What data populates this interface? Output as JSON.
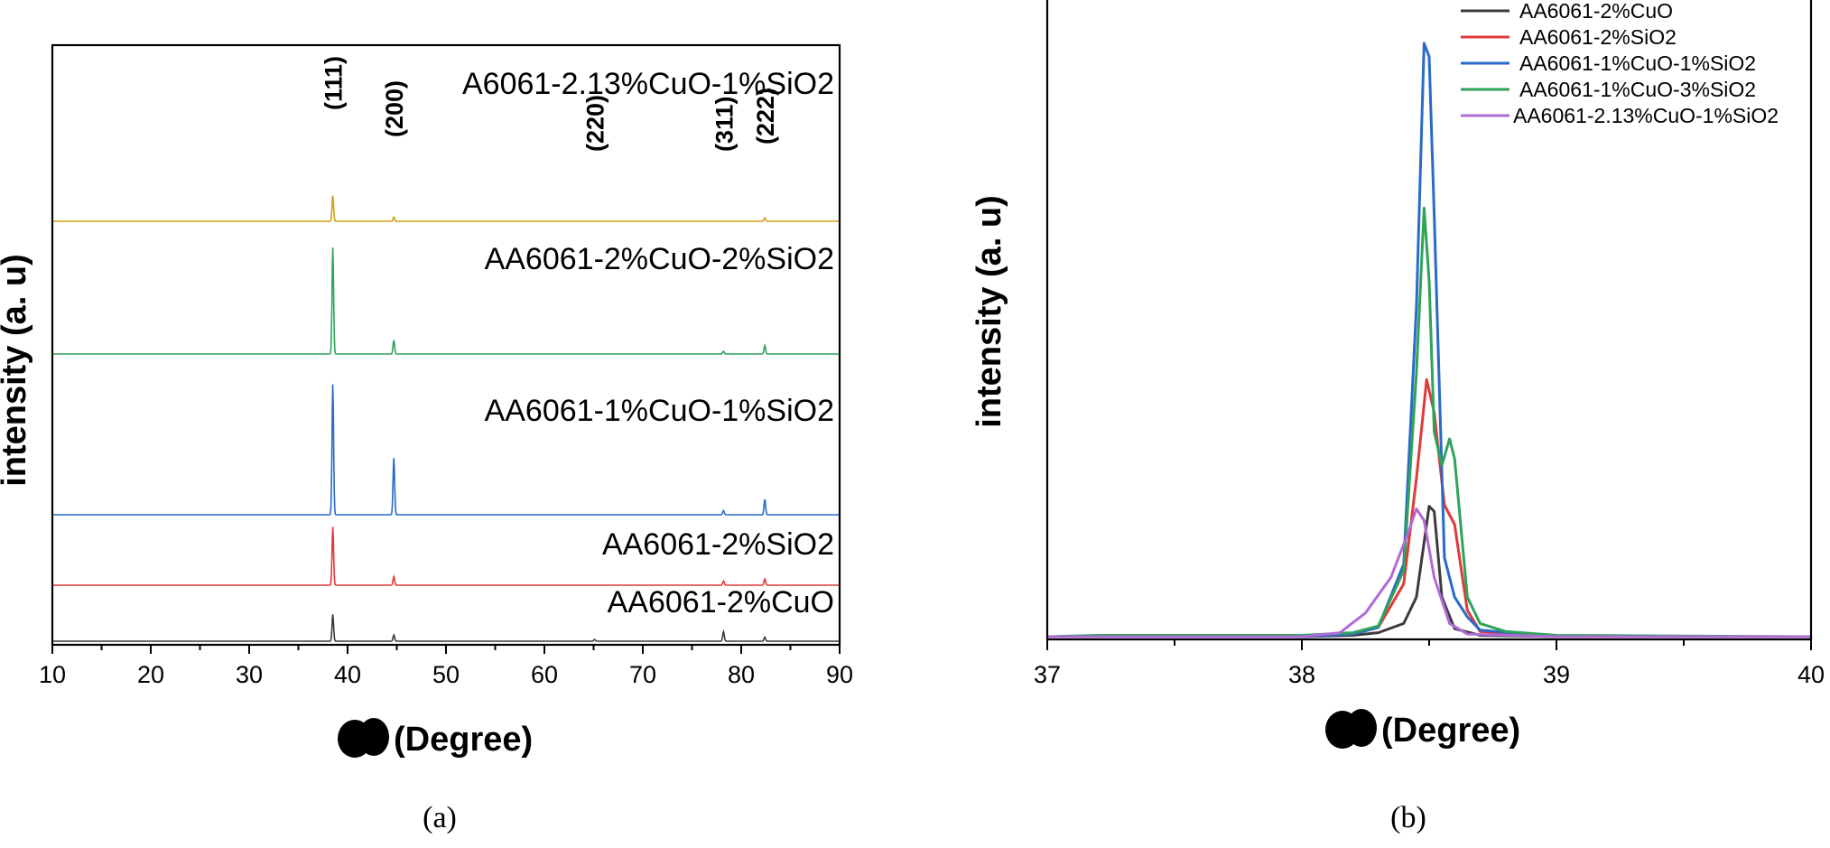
{
  "chart_data": [
    {
      "type": "line",
      "caption": "(a)",
      "ylabel": "intensity (a. u)",
      "xlabel": "(Degree)",
      "xlim": [
        10,
        90
      ],
      "xticks": [
        10,
        20,
        30,
        40,
        50,
        60,
        70,
        80,
        90
      ],
      "tick_labels": [
        "10",
        "20",
        "30",
        "40",
        "50",
        "60",
        "70",
        "80",
        "90"
      ],
      "peak_annotations": [
        {
          "label": "(111)",
          "x": 38.5
        },
        {
          "label": "(200)",
          "x": 44.7
        },
        {
          "label": "(220)",
          "x": 65.1
        },
        {
          "label": "(311)",
          "x": 78.2
        },
        {
          "label": "(222)",
          "x": 82.4
        }
      ],
      "series": [
        {
          "name": "AA6061-2%CuO",
          "color": "#3c3c3c",
          "peaks": [
            {
              "x": 38.5,
              "height": 0.78
            },
            {
              "x": 44.7,
              "height": 0.18
            },
            {
              "x": 65.1,
              "height": 0.05
            },
            {
              "x": 78.2,
              "height": 0.28
            },
            {
              "x": 82.4,
              "height": 0.12
            }
          ]
        },
        {
          "name": "AA6061-2%SiO2",
          "color": "#e0393a",
          "peaks": [
            {
              "x": 38.5,
              "height": 1.7
            },
            {
              "x": 44.7,
              "height": 0.25
            },
            {
              "x": 78.2,
              "height": 0.12
            },
            {
              "x": 82.4,
              "height": 0.18
            }
          ]
        },
        {
          "name": "AA6061-1%CuO-1%SiO2",
          "color": "#2a6ac8",
          "peaks": [
            {
              "x": 38.5,
              "height": 3.8
            },
            {
              "x": 44.7,
              "height": 1.65
            },
            {
              "x": 78.2,
              "height": 0.12
            },
            {
              "x": 82.4,
              "height": 0.45
            }
          ]
        },
        {
          "name": "AA6061-2%CuO-2%SiO2",
          "color": "#2fa35a",
          "peaks": [
            {
              "x": 38.5,
              "height": 3.1
            },
            {
              "x": 44.7,
              "height": 0.4
            },
            {
              "x": 78.2,
              "height": 0.08
            },
            {
              "x": 82.4,
              "height": 0.25
            }
          ]
        },
        {
          "name": "A6061-2.13%CuO-1%SiO2",
          "color": "#d4a017",
          "peaks": [
            {
              "x": 38.5,
              "height": 0.75
            },
            {
              "x": 44.7,
              "height": 0.12
            },
            {
              "x": 82.4,
              "height": 0.1
            }
          ]
        }
      ]
    },
    {
      "type": "line",
      "caption": "(b)",
      "ylabel": "intensity (a. u)",
      "xlabel": "(Degree)",
      "xlim": [
        37,
        40
      ],
      "xticks": [
        37,
        38,
        39,
        40
      ],
      "tick_labels": [
        "37",
        "38",
        "39",
        "40"
      ],
      "legend_position": "top-right",
      "series": [
        {
          "name": "AA6061-2%CuO",
          "color": "#3c3c3c",
          "points": [
            [
              37.0,
              0
            ],
            [
              38.0,
              0
            ],
            [
              38.2,
              0.01
            ],
            [
              38.3,
              0.03
            ],
            [
              38.4,
              0.1
            ],
            [
              38.45,
              0.3
            ],
            [
              38.5,
              0.99
            ],
            [
              38.52,
              0.95
            ],
            [
              38.55,
              0.3
            ],
            [
              38.6,
              0.06
            ],
            [
              38.7,
              0.01
            ],
            [
              39.0,
              0
            ],
            [
              40.0,
              0
            ]
          ]
        },
        {
          "name": "AA6061-2%SiO2",
          "color": "#e0393a",
          "points": [
            [
              37.0,
              0
            ],
            [
              38.0,
              0
            ],
            [
              38.2,
              0.02
            ],
            [
              38.3,
              0.07
            ],
            [
              38.4,
              0.4
            ],
            [
              38.45,
              1.2
            ],
            [
              38.49,
              1.95
            ],
            [
              38.52,
              1.7
            ],
            [
              38.56,
              1.0
            ],
            [
              38.6,
              0.85
            ],
            [
              38.65,
              0.2
            ],
            [
              38.7,
              0.04
            ],
            [
              39.0,
              0
            ],
            [
              40.0,
              0
            ]
          ]
        },
        {
          "name": "AA6061-1%CuO-1%SiO2",
          "color": "#2a6ac8",
          "points": [
            [
              37.0,
              0
            ],
            [
              38.0,
              0
            ],
            [
              38.2,
              0.02
            ],
            [
              38.3,
              0.07
            ],
            [
              38.4,
              0.55
            ],
            [
              38.45,
              2.5
            ],
            [
              38.48,
              4.5
            ],
            [
              38.5,
              4.4
            ],
            [
              38.52,
              3.2
            ],
            [
              38.56,
              0.6
            ],
            [
              38.6,
              0.3
            ],
            [
              38.65,
              0.15
            ],
            [
              38.7,
              0.05
            ],
            [
              39.0,
              0
            ],
            [
              40.0,
              0
            ]
          ]
        },
        {
          "name": "AA6061-1%CuO-3%SiO2",
          "color": "#2fa35a",
          "points": [
            [
              37.0,
              0
            ],
            [
              37.2,
              0.01
            ],
            [
              38.0,
              0.01
            ],
            [
              38.2,
              0.03
            ],
            [
              38.3,
              0.08
            ],
            [
              38.4,
              0.5
            ],
            [
              38.45,
              2.0
            ],
            [
              38.48,
              3.25
            ],
            [
              38.5,
              2.7
            ],
            [
              38.52,
              1.55
            ],
            [
              38.55,
              1.3
            ],
            [
              38.58,
              1.5
            ],
            [
              38.6,
              1.35
            ],
            [
              38.65,
              0.3
            ],
            [
              38.7,
              0.1
            ],
            [
              38.8,
              0.04
            ],
            [
              39.0,
              0.01
            ],
            [
              40.0,
              0
            ]
          ]
        },
        {
          "name": "AA6061-2.13%CuO-1%SiO2",
          "color": "#b26ad6",
          "points": [
            [
              37.0,
              0
            ],
            [
              38.0,
              0
            ],
            [
              38.15,
              0.03
            ],
            [
              38.25,
              0.18
            ],
            [
              38.35,
              0.45
            ],
            [
              38.42,
              0.8
            ],
            [
              38.45,
              0.97
            ],
            [
              38.48,
              0.88
            ],
            [
              38.52,
              0.45
            ],
            [
              38.58,
              0.1
            ],
            [
              38.65,
              0.02
            ],
            [
              39.0,
              0
            ],
            [
              40.0,
              0
            ]
          ]
        }
      ]
    }
  ]
}
